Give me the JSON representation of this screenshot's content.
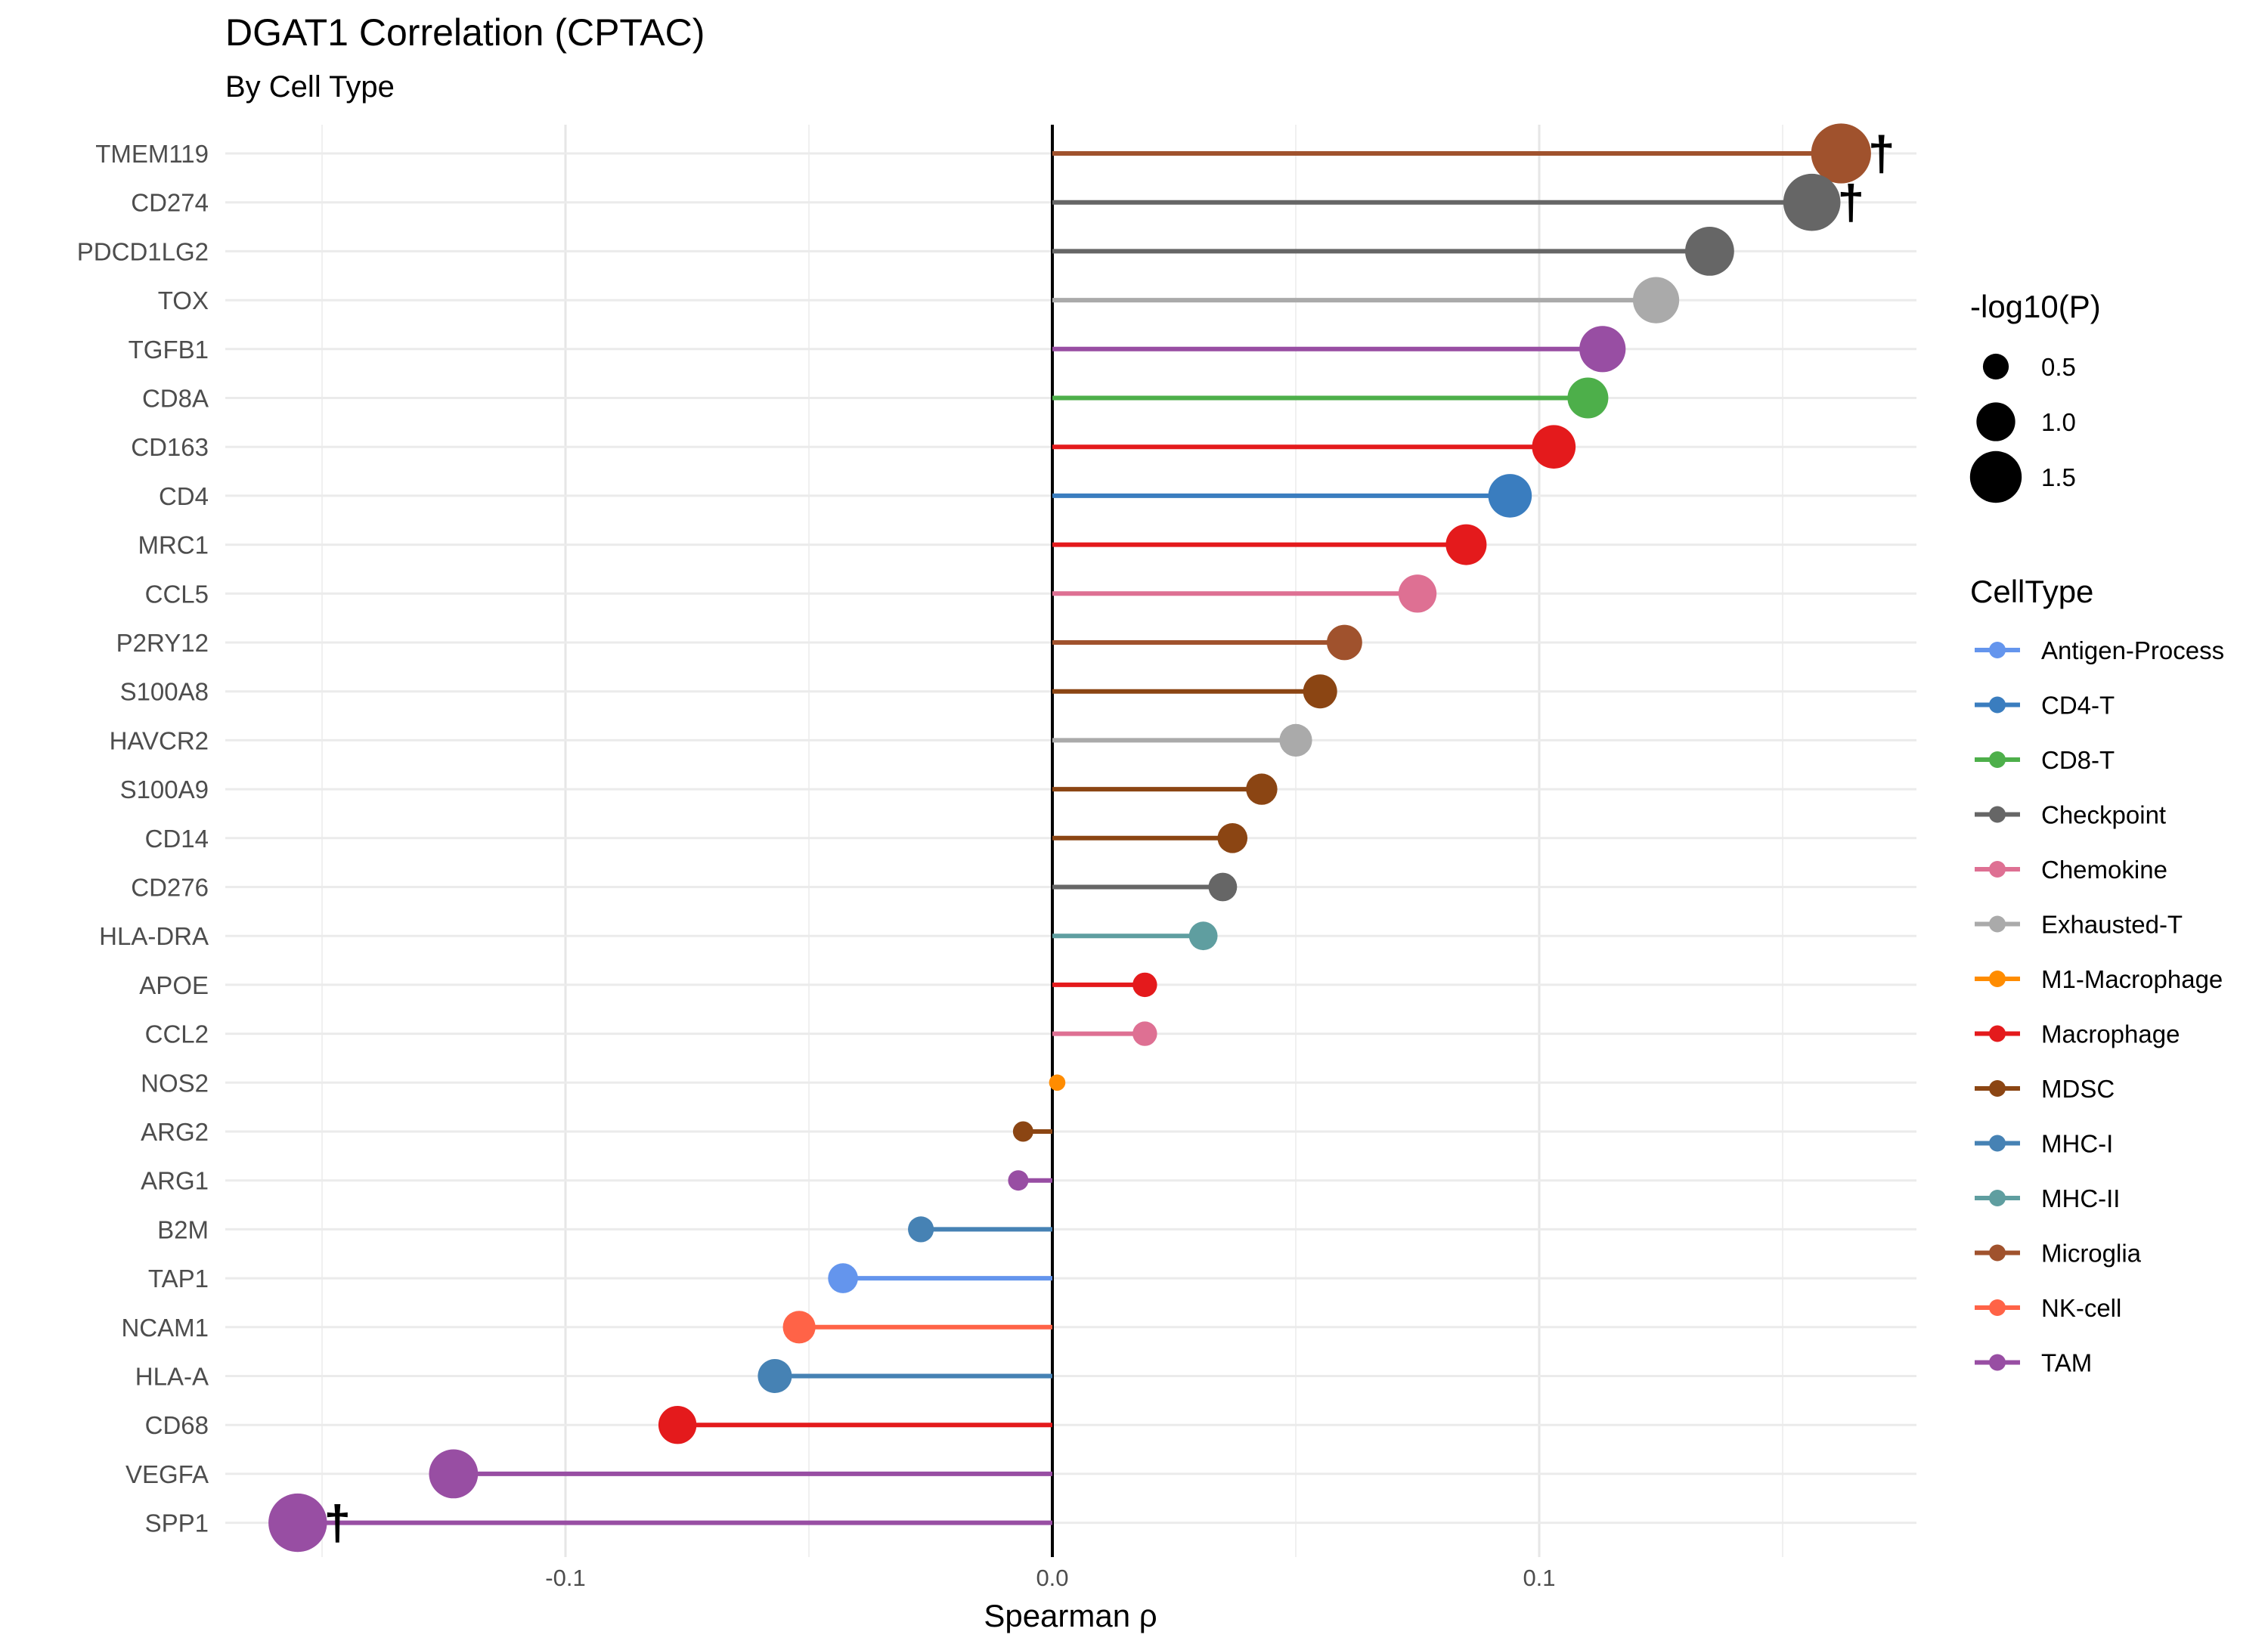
{
  "chart_data": {
    "type": "lollipop",
    "title": "DGAT1 Correlation (CPTAC)",
    "subtitle": "By Cell Type",
    "xlabel": "Spearman ρ",
    "ylabel": "",
    "xlim": [
      -0.171,
      0.18
    ],
    "x_ticks": [
      -0.1,
      0.0,
      0.1
    ],
    "x_tick_labels": [
      "-0.1",
      "0.0",
      "0.1"
    ],
    "grid": true,
    "legend_position": "right",
    "significance_marker": "†",
    "size_legend": {
      "title": "-log10(P)",
      "entries": [
        {
          "label": "0.5",
          "value": 0.5
        },
        {
          "label": "1.0",
          "value": 1.0
        },
        {
          "label": "1.5",
          "value": 1.5
        }
      ]
    },
    "color_legend": {
      "title": "CellType",
      "entries": [
        {
          "name": "Antigen-Process",
          "color": "#6495ED"
        },
        {
          "name": "CD4-T",
          "color": "#3A7DBF"
        },
        {
          "name": "CD8-T",
          "color": "#4DAF4A"
        },
        {
          "name": "Checkpoint",
          "color": "#666666"
        },
        {
          "name": "Chemokine",
          "color": "#DE7093"
        },
        {
          "name": "Exhausted-T",
          "color": "#AAAAAA"
        },
        {
          "name": "M1-Macrophage",
          "color": "#FF8C00"
        },
        {
          "name": "Macrophage",
          "color": "#E41A1C"
        },
        {
          "name": "MDSC",
          "color": "#8B4513"
        },
        {
          "name": "MHC-I",
          "color": "#4682B4"
        },
        {
          "name": "MHC-II",
          "color": "#5F9EA0"
        },
        {
          "name": "Microglia",
          "color": "#A0522D"
        },
        {
          "name": "NK-cell",
          "color": "#FF6347"
        },
        {
          "name": "TAM",
          "color": "#984EA3"
        }
      ]
    },
    "points": [
      {
        "gene": "TMEM119",
        "rho": 0.162,
        "neglog10p": 1.7,
        "celltype": "Microglia",
        "significant": true
      },
      {
        "gene": "CD274",
        "rho": 0.156,
        "neglog10p": 1.6,
        "celltype": "Checkpoint",
        "significant": true
      },
      {
        "gene": "PDCD1LG2",
        "rho": 0.135,
        "neglog10p": 1.3,
        "celltype": "Checkpoint",
        "significant": false
      },
      {
        "gene": "TOX",
        "rho": 0.124,
        "neglog10p": 1.2,
        "celltype": "Exhausted-T",
        "significant": false
      },
      {
        "gene": "TGFB1",
        "rho": 0.113,
        "neglog10p": 1.2,
        "celltype": "TAM",
        "significant": false
      },
      {
        "gene": "CD8A",
        "rho": 0.11,
        "neglog10p": 1.0,
        "celltype": "CD8-T",
        "significant": false
      },
      {
        "gene": "CD163",
        "rho": 0.103,
        "neglog10p": 1.1,
        "celltype": "Macrophage",
        "significant": false
      },
      {
        "gene": "CD4",
        "rho": 0.094,
        "neglog10p": 1.1,
        "celltype": "CD4-T",
        "significant": false
      },
      {
        "gene": "MRC1",
        "rho": 0.085,
        "neglog10p": 1.0,
        "celltype": "Macrophage",
        "significant": false
      },
      {
        "gene": "CCL5",
        "rho": 0.075,
        "neglog10p": 0.9,
        "celltype": "Chemokine",
        "significant": false
      },
      {
        "gene": "P2RY12",
        "rho": 0.06,
        "neglog10p": 0.8,
        "celltype": "Microglia",
        "significant": false
      },
      {
        "gene": "S100A8",
        "rho": 0.055,
        "neglog10p": 0.75,
        "celltype": "MDSC",
        "significant": false
      },
      {
        "gene": "HAVCR2",
        "rho": 0.05,
        "neglog10p": 0.7,
        "celltype": "Exhausted-T",
        "significant": false
      },
      {
        "gene": "S100A9",
        "rho": 0.043,
        "neglog10p": 0.65,
        "celltype": "MDSC",
        "significant": false
      },
      {
        "gene": "CD14",
        "rho": 0.037,
        "neglog10p": 0.6,
        "celltype": "MDSC",
        "significant": false
      },
      {
        "gene": "CD276",
        "rho": 0.035,
        "neglog10p": 0.55,
        "celltype": "Checkpoint",
        "significant": false
      },
      {
        "gene": "HLA-DRA",
        "rho": 0.031,
        "neglog10p": 0.55,
        "celltype": "MHC-II",
        "significant": false
      },
      {
        "gene": "APOE",
        "rho": 0.019,
        "neglog10p": 0.4,
        "celltype": "Macrophage",
        "significant": false
      },
      {
        "gene": "CCL2",
        "rho": 0.019,
        "neglog10p": 0.4,
        "celltype": "Chemokine",
        "significant": false
      },
      {
        "gene": "NOS2",
        "rho": 0.001,
        "neglog10p": 0.1,
        "celltype": "M1-Macrophage",
        "significant": false
      },
      {
        "gene": "ARG2",
        "rho": -0.006,
        "neglog10p": 0.25,
        "celltype": "MDSC",
        "significant": false
      },
      {
        "gene": "ARG1",
        "rho": -0.007,
        "neglog10p": 0.25,
        "celltype": "TAM",
        "significant": false
      },
      {
        "gene": "B2M",
        "rho": -0.027,
        "neglog10p": 0.45,
        "celltype": "MHC-I",
        "significant": false
      },
      {
        "gene": "TAP1",
        "rho": -0.043,
        "neglog10p": 0.6,
        "celltype": "Antigen-Process",
        "significant": false
      },
      {
        "gene": "NCAM1",
        "rho": -0.052,
        "neglog10p": 0.7,
        "celltype": "NK-cell",
        "significant": false
      },
      {
        "gene": "HLA-A",
        "rho": -0.057,
        "neglog10p": 0.75,
        "celltype": "MHC-I",
        "significant": false
      },
      {
        "gene": "CD68",
        "rho": -0.077,
        "neglog10p": 0.9,
        "celltype": "Macrophage",
        "significant": false
      },
      {
        "gene": "VEGFA",
        "rho": -0.123,
        "neglog10p": 1.3,
        "celltype": "TAM",
        "significant": false
      },
      {
        "gene": "SPP1",
        "rho": -0.155,
        "neglog10p": 1.65,
        "celltype": "TAM",
        "significant": true
      }
    ]
  }
}
